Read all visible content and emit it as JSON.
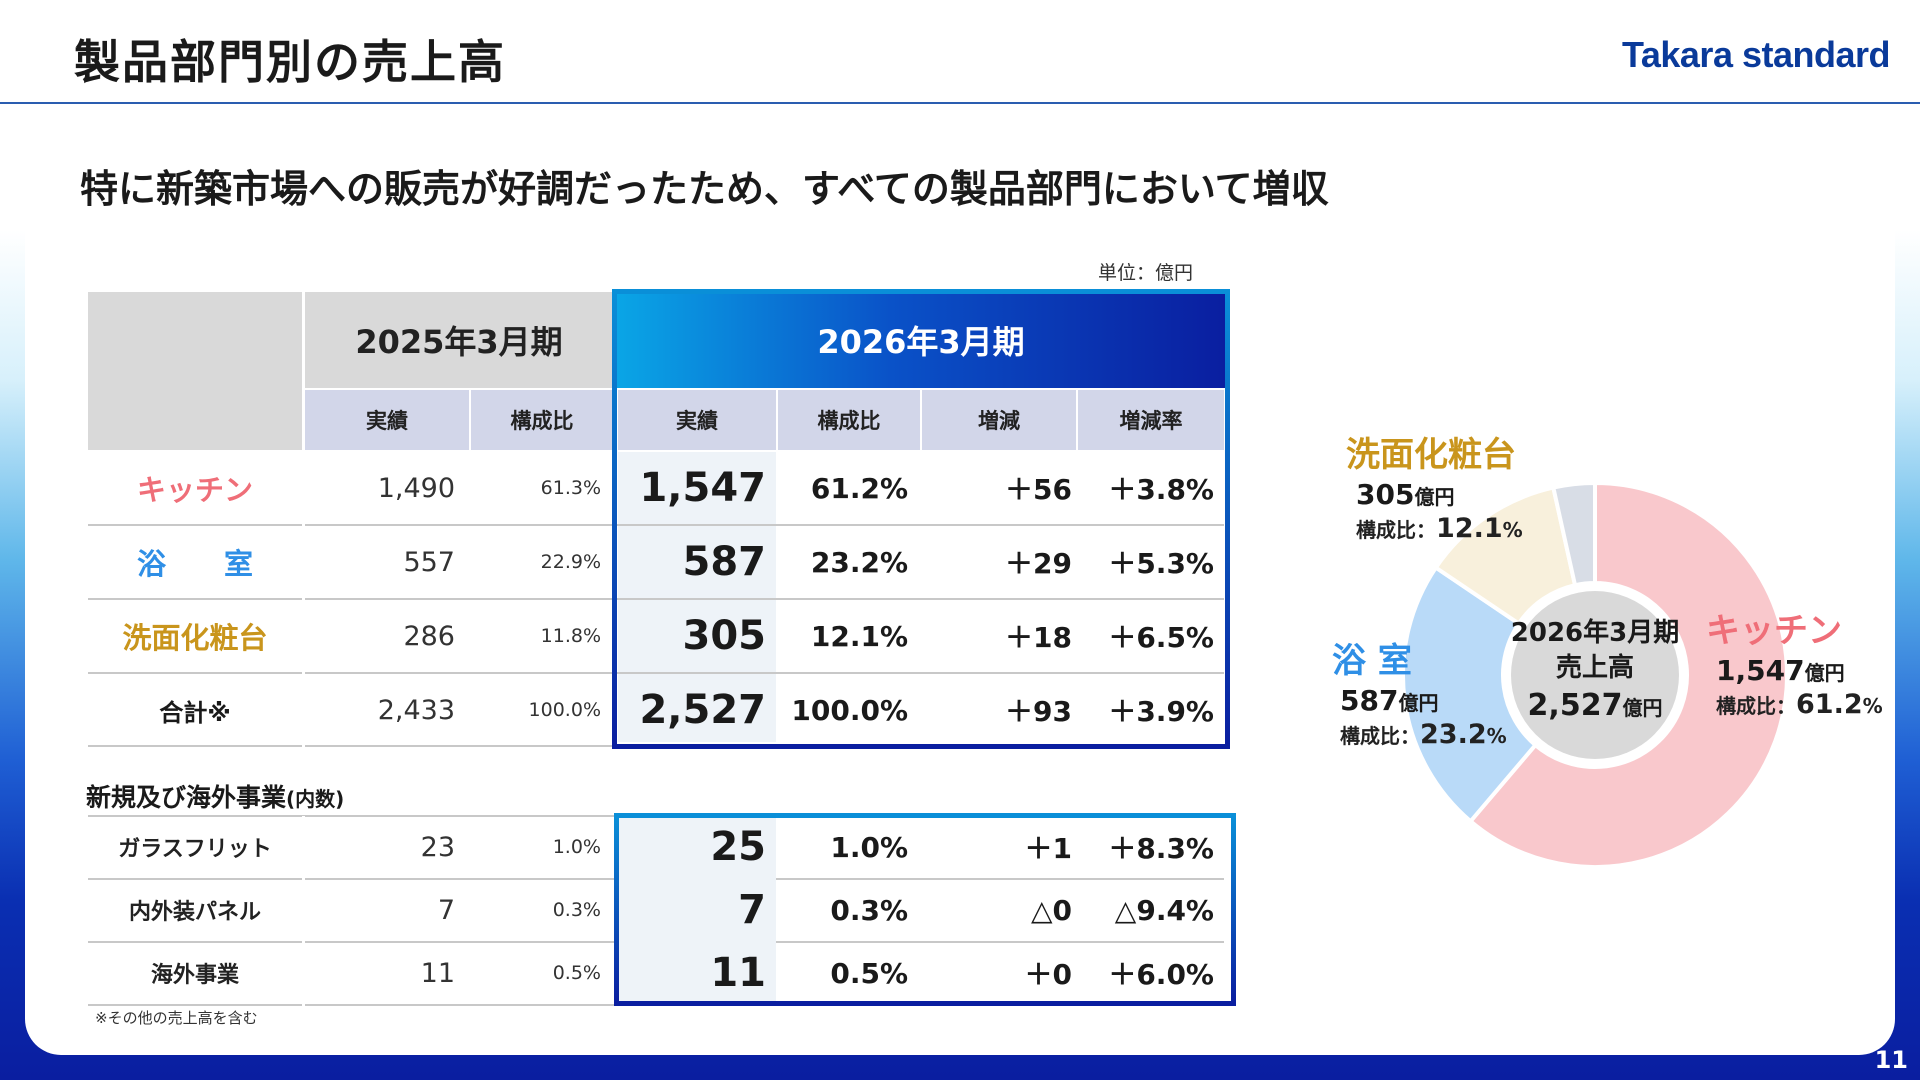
{
  "header": {
    "title": "製品部門別の売上高",
    "logo": "Takara standard"
  },
  "headline": "特に新築市場への販売が好調だったため、すべての製品部門において増収",
  "unit": "単位：億円",
  "table": {
    "period_prev": "2025年3月期",
    "period_curr": "2026年3月期",
    "col_actual": "実績",
    "col_ratio": "構成比",
    "col_change": "増減",
    "col_rate": "増減率",
    "rows": [
      {
        "name": "キッチン",
        "prev": "1,490",
        "prev_ratio": "61.3%",
        "curr": "1,547",
        "curr_ratio": "61.2%",
        "change": "＋56",
        "rate": "＋3.8%"
      },
      {
        "name": "浴　　室",
        "prev": "557",
        "prev_ratio": "22.9%",
        "curr": "587",
        "curr_ratio": "23.2%",
        "change": "＋29",
        "rate": "＋5.3%"
      },
      {
        "name": "洗面化粧台",
        "prev": "286",
        "prev_ratio": "11.8%",
        "curr": "305",
        "curr_ratio": "12.1%",
        "change": "＋18",
        "rate": "＋6.5%"
      },
      {
        "name": "合計※",
        "prev": "2,433",
        "prev_ratio": "100.0%",
        "curr": "2,527",
        "curr_ratio": "100.0%",
        "change": "＋93",
        "rate": "＋3.9%"
      }
    ],
    "category_colors": [
      "#ef6e78",
      "#2f8fe6",
      "#c9951c",
      "#1a1a1a"
    ]
  },
  "sub_table": {
    "title": "新規及び海外事業",
    "title_suffix": "(内数)",
    "rows": [
      {
        "name": "ガラスフリット",
        "prev": "23",
        "prev_ratio": "1.0%",
        "curr": "25",
        "curr_ratio": "1.0%",
        "change": "＋1",
        "rate": "＋8.3%"
      },
      {
        "name": "内外装パネル",
        "prev": "7",
        "prev_ratio": "0.3%",
        "curr": "7",
        "curr_ratio": "0.3%",
        "change": "△0",
        "rate": "△9.4%"
      },
      {
        "name": "海外事業",
        "prev": "11",
        "prev_ratio": "0.5%",
        "curr": "11",
        "curr_ratio": "0.5%",
        "change": "＋0",
        "rate": "＋6.0%"
      }
    ]
  },
  "footnote": "※その他の売上高を含む",
  "page_number": "11",
  "chart_data": {
    "type": "pie",
    "title": "2026年3月期",
    "center_label": "売上高",
    "center_value": "2,527",
    "center_unit": "億円",
    "slices": [
      {
        "name": "キッチン",
        "value": 1547,
        "amount": "1,547",
        "unit": "億円",
        "ratio_label": "構成比：",
        "ratio": "61.2",
        "ratio_unit": "%",
        "color": "#f9c8cc"
      },
      {
        "name": "浴 室",
        "value": 587,
        "amount": "587",
        "unit": "億円",
        "ratio_label": "構成比：",
        "ratio": "23.2",
        "ratio_unit": "%",
        "color": "#b9daf8"
      },
      {
        "name": "洗面化粧台",
        "value": 305,
        "amount": "305",
        "unit": "億円",
        "ratio_label": "構成比：",
        "ratio": "12.1",
        "ratio_unit": "%",
        "color": "#f8f0dc"
      },
      {
        "name": "",
        "value": 88,
        "color": "#d8dde6"
      }
    ],
    "label_colors": [
      "#ef6e78",
      "#2f8fe6",
      "#c9951c"
    ]
  }
}
